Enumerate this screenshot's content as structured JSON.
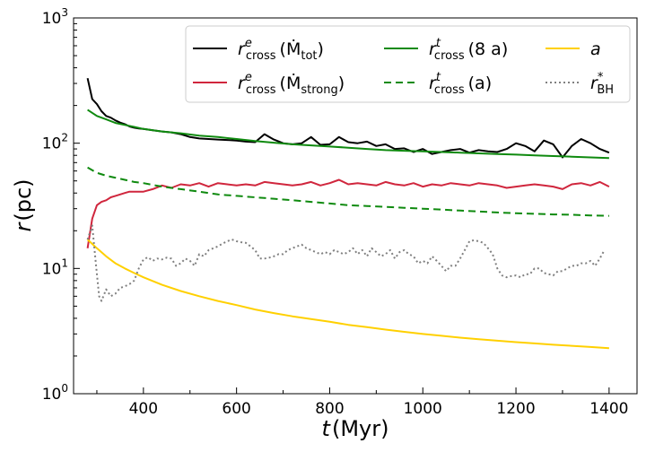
{
  "chart_data": {
    "type": "line",
    "title": "",
    "xlabel": {
      "var": "t",
      "unit": "(Myr)"
    },
    "ylabel": {
      "var": "r",
      "unit": "(pc)"
    },
    "xlim": [
      250,
      1460
    ],
    "ylim": [
      1,
      1000
    ],
    "yscale": "log",
    "x_ticks": [
      400,
      600,
      800,
      1000,
      1200,
      1400
    ],
    "y_ticks": [
      {
        "base": "10",
        "exp": "0",
        "value": 1
      },
      {
        "base": "10",
        "exp": "1",
        "value": 10
      },
      {
        "base": "10",
        "exp": "2",
        "value": 100
      },
      {
        "base": "10",
        "exp": "3",
        "value": 1000
      }
    ],
    "legend": {
      "position": "top-right",
      "entries": [
        {
          "series": "r_cross_e_mdot_tot",
          "main": "r",
          "sup": "e",
          "sub": "cross",
          "arg": "(Ṁ",
          "argsub": "tot",
          "close": ")"
        },
        {
          "series": "r_cross_e_mdot_strong",
          "main": "r",
          "sup": "e",
          "sub": "cross",
          "arg": "(Ṁ",
          "argsub": "strong",
          "close": ")"
        },
        {
          "series": "r_cross_t_8a",
          "main": "r",
          "sup": "t",
          "sub": "cross",
          "arg": "(8 a",
          "argsub": "",
          "close": ")"
        },
        {
          "series": "r_cross_t_a",
          "main": "r",
          "sup": "t",
          "sub": "cross",
          "arg": "(a",
          "argsub": "",
          "close": ")"
        },
        {
          "series": "a",
          "main": "a",
          "sup": "",
          "sub": "",
          "arg": "",
          "argsub": "",
          "close": ""
        },
        {
          "series": "r_bh_star",
          "main": "r",
          "sup": "*",
          "sub": "BH",
          "arg": "",
          "argsub": "",
          "close": ""
        }
      ]
    },
    "series": [
      {
        "name": "r_cross_e_mdot_tot",
        "color": "#000000",
        "dash": "",
        "x": [
          280,
          290,
          300,
          310,
          320,
          330,
          340,
          350,
          360,
          370,
          380,
          390,
          400,
          420,
          440,
          460,
          480,
          500,
          520,
          540,
          560,
          580,
          600,
          620,
          640,
          660,
          680,
          700,
          720,
          740,
          760,
          780,
          800,
          820,
          840,
          860,
          880,
          900,
          920,
          940,
          960,
          980,
          1000,
          1020,
          1040,
          1060,
          1080,
          1100,
          1120,
          1140,
          1160,
          1180,
          1200,
          1220,
          1240,
          1260,
          1280,
          1300,
          1320,
          1340,
          1360,
          1380,
          1400
        ],
        "values": [
          330,
          225,
          205,
          180,
          165,
          160,
          152,
          146,
          142,
          136,
          133,
          131,
          130,
          127,
          124,
          122,
          118,
          112,
          109,
          108,
          107,
          106,
          105,
          103,
          102,
          118,
          107,
          100,
          98,
          100,
          112,
          97,
          98,
          112,
          102,
          100,
          103,
          95,
          98,
          90,
          91,
          85,
          90,
          82,
          85,
          88,
          90,
          84,
          88,
          86,
          85,
          90,
          100,
          95,
          86,
          105,
          98,
          77,
          95,
          108,
          100,
          90,
          84
        ]
      },
      {
        "name": "r_cross_e_mdot_strong",
        "color": "#d0263d",
        "dash": "",
        "x": [
          280,
          290,
          300,
          310,
          320,
          330,
          340,
          350,
          360,
          370,
          380,
          390,
          400,
          420,
          440,
          460,
          480,
          500,
          520,
          540,
          560,
          580,
          600,
          620,
          640,
          660,
          680,
          700,
          720,
          740,
          760,
          780,
          800,
          820,
          840,
          860,
          880,
          900,
          920,
          940,
          960,
          980,
          1000,
          1020,
          1040,
          1060,
          1080,
          1100,
          1120,
          1140,
          1160,
          1180,
          1200,
          1220,
          1240,
          1260,
          1280,
          1300,
          1320,
          1340,
          1360,
          1380,
          1400
        ],
        "values": [
          14.5,
          25,
          32,
          34,
          35,
          37,
          38,
          39,
          40,
          41,
          41,
          41,
          41,
          43,
          46,
          44,
          47,
          46,
          48,
          45,
          48,
          47,
          46,
          47,
          46,
          49,
          48,
          47,
          46,
          47,
          49,
          46,
          48,
          51,
          47,
          48,
          47,
          46,
          49,
          47,
          46,
          48,
          45,
          47,
          46,
          48,
          47,
          46,
          48,
          47,
          46,
          44,
          45,
          46,
          47,
          46,
          45,
          43,
          47,
          48,
          46,
          49,
          45
        ]
      },
      {
        "name": "r_cross_t_8a",
        "color": "#0f8a0f",
        "dash": "",
        "x": [
          280,
          300,
          320,
          340,
          360,
          380,
          400,
          440,
          480,
          520,
          560,
          600,
          640,
          680,
          720,
          760,
          800,
          840,
          880,
          920,
          960,
          1000,
          1040,
          1080,
          1120,
          1160,
          1200,
          1240,
          1280,
          1320,
          1360,
          1400
        ],
        "values": [
          185,
          165,
          155,
          145,
          140,
          135,
          130,
          124,
          120,
          115,
          112,
          108,
          104,
          101,
          98,
          96,
          94,
          92,
          90,
          88,
          87,
          86,
          85,
          84,
          83,
          82,
          81,
          80,
          79,
          78,
          77,
          76
        ]
      },
      {
        "name": "r_cross_t_a",
        "color": "#0f8a0f",
        "dash": "8,5",
        "x": [
          280,
          300,
          320,
          340,
          360,
          380,
          400,
          440,
          480,
          520,
          560,
          600,
          640,
          680,
          720,
          760,
          800,
          840,
          880,
          920,
          960,
          1000,
          1040,
          1080,
          1120,
          1160,
          1200,
          1240,
          1280,
          1320,
          1360,
          1400
        ],
        "values": [
          64,
          58,
          55,
          53,
          51,
          49,
          48,
          45,
          43,
          41,
          39,
          38,
          37,
          36,
          35,
          34,
          33,
          32,
          31.5,
          31,
          30.5,
          30,
          29.5,
          29,
          28.5,
          28,
          27.6,
          27.3,
          27,
          26.8,
          26.5,
          26.3
        ]
      },
      {
        "name": "a",
        "color": "#ffd000",
        "dash": "",
        "x": [
          280,
          300,
          320,
          340,
          360,
          380,
          400,
          440,
          480,
          520,
          560,
          600,
          640,
          680,
          720,
          760,
          800,
          840,
          880,
          920,
          960,
          1000,
          1040,
          1080,
          1120,
          1160,
          1200,
          1240,
          1280,
          1320,
          1360,
          1400
        ],
        "values": [
          17,
          14.5,
          12.5,
          11,
          10,
          9.2,
          8.5,
          7.4,
          6.6,
          6,
          5.5,
          5.1,
          4.7,
          4.4,
          4.15,
          3.95,
          3.75,
          3.55,
          3.4,
          3.25,
          3.12,
          3.0,
          2.9,
          2.8,
          2.72,
          2.65,
          2.58,
          2.52,
          2.46,
          2.41,
          2.36,
          2.31
        ]
      },
      {
        "name": "r_bh_star",
        "color": "#808080",
        "dash": "2,3",
        "x": [
          280,
          290,
          295,
          300,
          305,
          310,
          320,
          330,
          340,
          350,
          360,
          370,
          380,
          390,
          400,
          410,
          420,
          430,
          440,
          450,
          460,
          470,
          480,
          490,
          500,
          510,
          520,
          530,
          540,
          550,
          560,
          570,
          580,
          590,
          600,
          610,
          620,
          630,
          640,
          650,
          660,
          670,
          680,
          690,
          700,
          710,
          720,
          730,
          740,
          750,
          760,
          770,
          780,
          790,
          800,
          810,
          820,
          830,
          840,
          850,
          860,
          870,
          880,
          890,
          900,
          910,
          920,
          930,
          940,
          950,
          960,
          970,
          980,
          990,
          1000,
          1010,
          1020,
          1030,
          1040,
          1050,
          1060,
          1070,
          1080,
          1090,
          1100,
          1110,
          1120,
          1130,
          1140,
          1150,
          1160,
          1170,
          1180,
          1190,
          1200,
          1210,
          1220,
          1230,
          1240,
          1250,
          1260,
          1270,
          1280,
          1290,
          1300,
          1310,
          1320,
          1330,
          1340,
          1350,
          1360,
          1370,
          1380,
          1390
        ],
        "values": [
          17,
          22,
          14,
          9,
          6,
          5.5,
          6.8,
          6,
          6.3,
          7,
          7.2,
          7.5,
          8,
          10,
          11.8,
          12.3,
          11.5,
          12,
          11.8,
          12.2,
          12,
          10.5,
          11,
          12,
          11.5,
          10.5,
          13,
          12.5,
          14,
          14.5,
          15,
          15.8,
          16.5,
          17,
          16.5,
          16.2,
          16,
          15,
          14,
          12,
          12,
          12.2,
          12.5,
          13,
          13,
          14,
          14.5,
          15,
          15.5,
          14.5,
          14,
          13.5,
          13,
          13.5,
          13,
          14,
          13.5,
          13,
          13.5,
          14.5,
          13,
          14,
          12.5,
          14.5,
          13.5,
          12.5,
          13,
          14,
          12,
          13.5,
          14,
          13,
          12.5,
          11,
          11.5,
          11,
          12.5,
          11.5,
          10.5,
          9.5,
          10.5,
          10.5,
          12,
          14,
          16.5,
          16.8,
          16.5,
          16,
          14.5,
          13,
          10,
          8.8,
          8.5,
          8.7,
          8.8,
          8.5,
          9,
          9,
          10,
          10,
          9.2,
          9,
          8.8,
          9.5,
          9.5,
          10,
          10.5,
          10.5,
          11,
          11,
          11.5,
          10.5,
          12,
          14
        ]
      }
    ]
  }
}
